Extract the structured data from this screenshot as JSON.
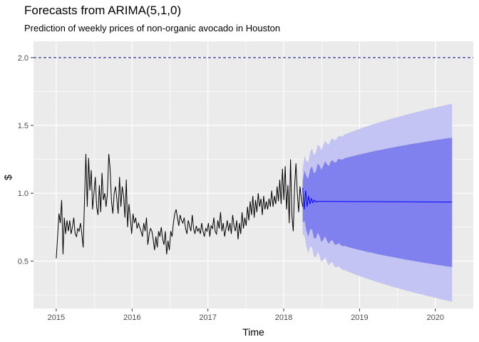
{
  "chart_data": {
    "type": "line",
    "title": "Forecasts from ARIMA(5,1,0)",
    "subtitle": "Prediction of weekly prices of non-organic avocado in Houston",
    "xlabel": "Time",
    "ylabel": "$",
    "xlim": [
      2014.7,
      2020.5
    ],
    "ylim": [
      0.15,
      2.12
    ],
    "x_ticks": [
      2015,
      2016,
      2017,
      2018,
      2019,
      2020
    ],
    "y_ticks": [
      0.5,
      1.0,
      1.5,
      2.0
    ],
    "y_tick_labels": [
      "0.5",
      "1.0",
      "1.5",
      "2.0"
    ],
    "reference_line": {
      "y": 2.0,
      "style": "dashed",
      "color": "#00008b"
    },
    "grid": true,
    "colors": {
      "panel_background": "#ebebeb",
      "grid": "#ffffff",
      "history_line": "#000000",
      "forecast_line": "#0000ff",
      "band_95": "#c3c3f4",
      "band_80": "#8080ee"
    },
    "history": {
      "name": "observed",
      "start": 2015.0,
      "step_weeks": 1,
      "values": [
        0.52,
        0.68,
        0.85,
        0.78,
        0.95,
        0.55,
        0.82,
        0.7,
        0.8,
        0.72,
        0.8,
        0.7,
        0.75,
        0.82,
        0.7,
        0.68,
        0.74,
        0.72,
        0.78,
        0.7,
        0.6,
        0.95,
        1.29,
        0.9,
        1.26,
        1.02,
        1.17,
        0.88,
        1.0,
        1.12,
        0.9,
        0.84,
        1.06,
        0.86,
        1.15,
        0.95,
        1.0,
        0.9,
        1.0,
        1.29,
        1.18,
        0.94,
        0.85,
        1.0,
        1.05,
        0.96,
        0.85,
        1.12,
        0.9,
        1.05,
        0.98,
        0.82,
        1.1,
        0.75,
        0.92,
        0.82,
        0.7,
        0.85,
        0.78,
        0.82,
        0.74,
        0.78,
        0.75,
        0.72,
        0.68,
        0.78,
        0.72,
        0.82,
        0.62,
        0.7,
        0.74,
        0.72,
        0.66,
        0.58,
        0.68,
        0.6,
        0.72,
        0.68,
        0.75,
        0.66,
        0.62,
        0.72,
        0.55,
        0.65,
        0.58,
        0.72,
        0.68,
        0.78,
        0.85,
        0.88,
        0.82,
        0.76,
        0.84,
        0.8,
        0.78,
        0.82,
        0.74,
        0.7,
        0.8,
        0.76,
        0.72,
        0.84,
        0.74,
        0.7,
        0.76,
        0.72,
        0.74,
        0.7,
        0.78,
        0.72,
        0.68,
        0.74,
        0.72,
        0.78,
        0.68,
        0.76,
        0.74,
        0.82,
        0.72,
        0.7,
        0.8,
        0.74,
        0.86,
        0.72,
        0.78,
        0.68,
        0.74,
        0.8,
        0.72,
        0.78,
        0.7,
        0.84,
        0.76,
        0.72,
        0.8,
        0.66,
        0.78,
        0.7,
        0.86,
        0.74,
        0.82,
        0.76,
        0.9,
        0.8,
        0.94,
        0.84,
        0.98,
        0.82,
        0.95,
        0.86,
        1.0,
        0.9,
        0.96,
        0.84,
        0.98,
        0.88,
        0.94,
        0.88,
        0.96,
        0.9,
        1.02,
        0.9,
        0.98,
        0.92,
        1.05,
        0.94,
        1.1,
        0.92,
        1.18,
        0.95,
        1.2,
        0.88,
        1.06,
        0.78,
        1.25,
        0.84,
        0.72,
        1.05,
        1.22,
        1.0,
        0.86,
        1.05,
        0.96,
        0.9
      ]
    },
    "forecast": {
      "start": 2018.25,
      "end": 2020.22,
      "point_forecast": [
        1.04,
        0.88,
        1.02,
        0.9,
        0.98,
        0.92,
        0.96,
        0.93,
        0.95,
        0.935,
        0.94
      ],
      "settled_value": 0.935,
      "interval_80": {
        "lower_end": 0.455,
        "upper_end": 1.41
      },
      "interval_95": {
        "lower_end": 0.2,
        "upper_end": 1.66
      }
    }
  }
}
